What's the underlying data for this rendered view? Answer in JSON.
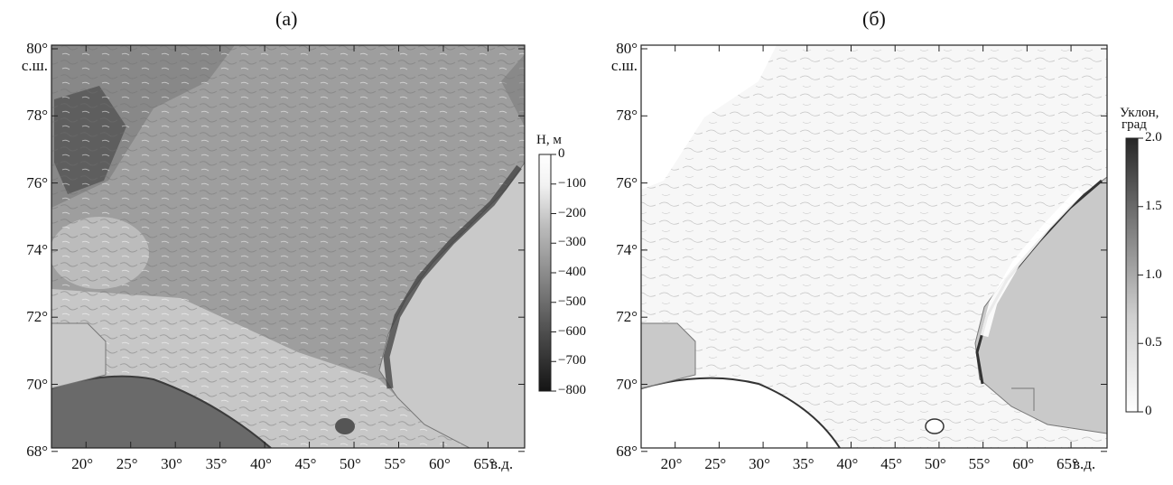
{
  "panels": [
    {
      "id": "a",
      "title": "(а)",
      "colorbar": {
        "title": "H, м",
        "ticks": [
          "0",
          "−100",
          "−200",
          "−300",
          "−400",
          "−500",
          "−600",
          "−700",
          "−800"
        ]
      }
    },
    {
      "id": "b",
      "title": "(б)",
      "colorbar": {
        "title_line1": "Уклон,",
        "title_line2": "град",
        "ticks": [
          "2.0",
          "1.5",
          "1.0",
          "0.5",
          "0"
        ]
      }
    }
  ],
  "axes": {
    "lat_labels": [
      "80°",
      "78°",
      "76°",
      "74°",
      "72°",
      "70°",
      "68°"
    ],
    "lat_unit": "с.ш.",
    "lon_labels": [
      "20°",
      "25°",
      "30°",
      "35°",
      "40°",
      "45°",
      "50°",
      "55°",
      "60°",
      "65°"
    ],
    "lon_unit": "в.д."
  },
  "colors": {
    "land": "#c9c9c9",
    "frame": "#222222"
  }
}
